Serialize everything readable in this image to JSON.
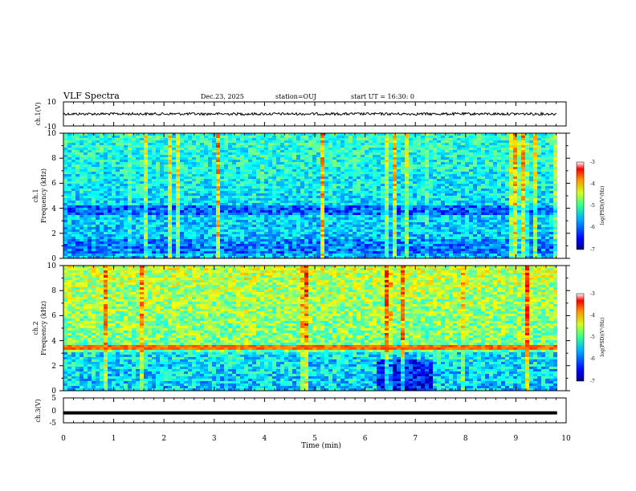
{
  "header": {
    "title": "VLF Spectra",
    "date": "Dec.23, 2025",
    "station": "station=OUJ",
    "start": "start  UT =  16:30: 0"
  },
  "chart_data": [
    {
      "type": "line",
      "name": "ch.1 waveform",
      "ylabel": "ch.1(V)",
      "ylim": [
        -10,
        10
      ],
      "yticks": [
        "10",
        "-10"
      ],
      "xlim": [
        0,
        10
      ],
      "baseline": 0,
      "end_x": 9.82
    },
    {
      "type": "heatmap",
      "name": "ch.1 spectrogram",
      "ylabel": [
        "ch.1",
        "Frequency (kHz)"
      ],
      "ylim": [
        0,
        10
      ],
      "yticks": [
        "0",
        "2",
        "4",
        "6",
        "8",
        "10"
      ],
      "xlim": [
        0,
        10
      ],
      "colorbar": {
        "label": "log(PSD)(V²/Hz)",
        "range": [
          -7,
          -3
        ],
        "ticks": [
          "-3",
          "-4",
          "-5",
          "-6",
          "-7"
        ]
      }
    },
    {
      "type": "heatmap",
      "name": "ch.2 spectrogram",
      "ylabel": [
        "ch.2",
        "Frequency (kHz)"
      ],
      "ylim": [
        0,
        10
      ],
      "yticks": [
        "0",
        "2",
        "4",
        "6",
        "8",
        "10"
      ],
      "xlim": [
        0,
        10
      ],
      "colorbar": {
        "label": "log(PSD)(V²/Hz)",
        "range": [
          -7,
          -3
        ],
        "ticks": [
          "-3",
          "-4",
          "-5",
          "-6",
          "-7"
        ]
      }
    },
    {
      "type": "line",
      "name": "ch.3 waveform",
      "ylabel": "ch.3(V)",
      "ylim": [
        -5,
        5
      ],
      "yticks": [
        "5",
        "0",
        "-5"
      ],
      "xlim": [
        0,
        10
      ],
      "baseline": -1,
      "end_x": 9.82
    }
  ],
  "xaxis": {
    "label": "Time (min)",
    "ticks": [
      "0",
      "1",
      "2",
      "3",
      "4",
      "5",
      "6",
      "7",
      "8",
      "9",
      "10"
    ]
  }
}
